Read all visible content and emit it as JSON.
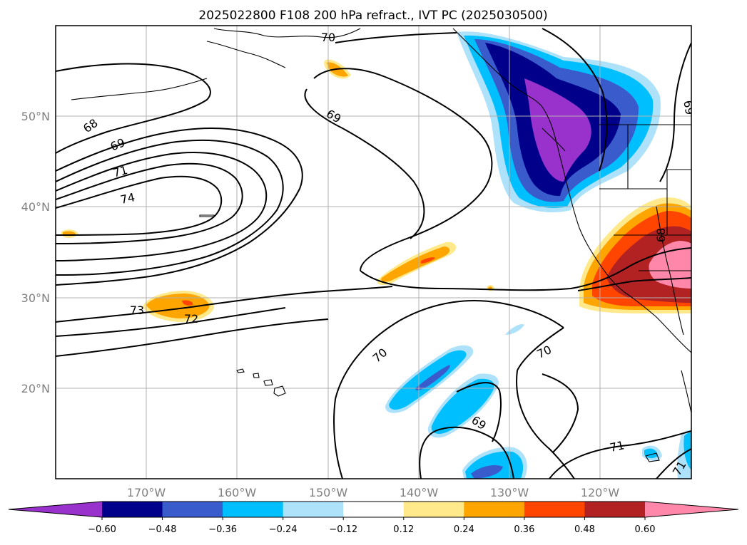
{
  "title": "2025022800 F108 200 hPa refract., IVT PC (2025030500)",
  "lat_labels": [
    "50°N",
    "40°N",
    "30°N",
    "20°N"
  ],
  "lon_labels": [
    "170°W",
    "160°W",
    "150°W",
    "140°W",
    "130°W",
    "120°W"
  ],
  "colorbar": {
    "tick_labels": [
      "−0.60",
      "−0.48",
      "−0.36",
      "−0.24",
      "−0.12",
      "0.12",
      "0.24",
      "0.36",
      "0.48",
      "0.60"
    ],
    "colors": [
      "#9932CC",
      "#00008B",
      "#3A5BCC",
      "#00BFFF",
      "#ADE2FA",
      "#FFFFFF",
      "#FFE98A",
      "#FFA500",
      "#FF4500",
      "#B22222",
      "#FF88AA"
    ]
  },
  "contour_labels": {
    "c68": "68",
    "c69a": "69",
    "c71": "71",
    "c74": "74",
    "c70top": "70",
    "c69mid": "69",
    "c73": "73",
    "c72": "72",
    "c70a": "70",
    "c70b": "70",
    "c69low": "69",
    "c71low": "71",
    "c69right": "69",
    "c68right": "68",
    "c71right": "71"
  },
  "colors": {
    "contour": "#000000",
    "gridline": "#b0b0b0",
    "axis_label": "#808080"
  }
}
